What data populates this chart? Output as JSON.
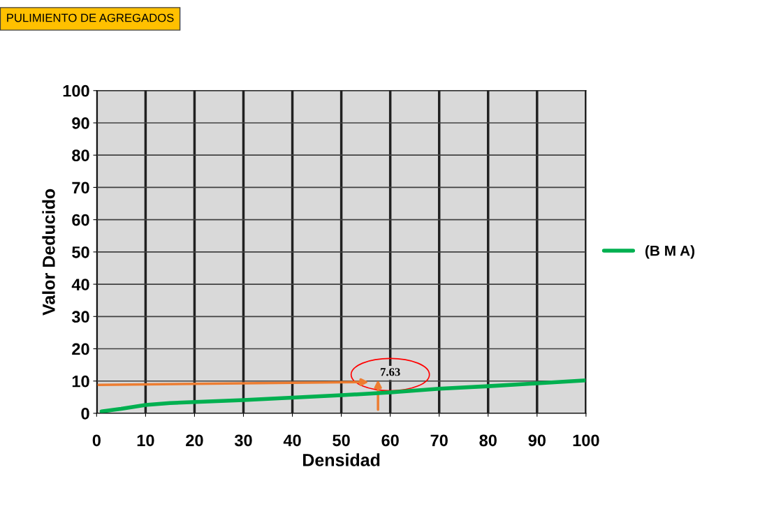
{
  "chart_data": {
    "type": "line",
    "title": "PULIMIENTO DE AGREGADOS",
    "xlabel": "Densidad",
    "ylabel": "Valor Deducido",
    "x": [
      1,
      5,
      10,
      15,
      30,
      50,
      60,
      70,
      80,
      90,
      100
    ],
    "series": [
      {
        "name": "(B M A)",
        "color": "#00b050",
        "values": [
          0.6,
          1.4,
          2.6,
          3.2,
          4.1,
          5.6,
          6.5,
          7.6,
          8.4,
          9.3,
          10.2
        ]
      }
    ],
    "xlim": [
      0,
      100
    ],
    "ylim": [
      0,
      100
    ],
    "xticks": [
      0,
      10,
      20,
      30,
      40,
      50,
      60,
      70,
      80,
      90,
      100
    ],
    "yticks": [
      0,
      10,
      20,
      30,
      40,
      50,
      60,
      70,
      80,
      90,
      100
    ],
    "grid": true,
    "legend": "right",
    "marker": "none",
    "line_style": "solid",
    "annotations": [
      "7.63"
    ]
  }
}
